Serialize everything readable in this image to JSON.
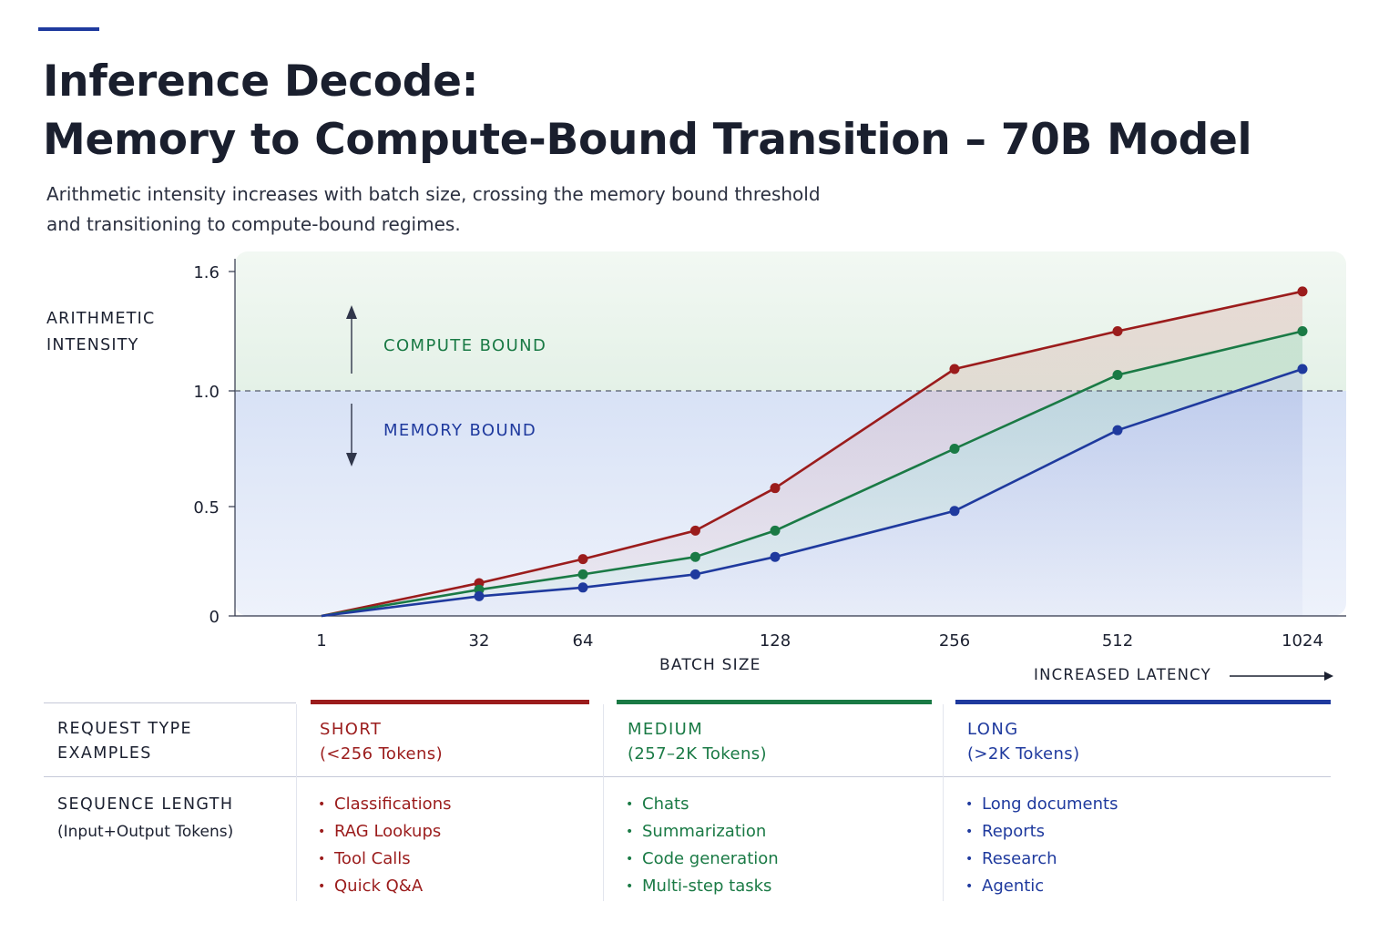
{
  "header": {
    "title_line1": "Inference Decode:",
    "title_line2": "Memory to Compute-Bound Transition – 70B Model",
    "subtitle_line1": "Arithmetic intensity increases with batch size, crossing the memory bound threshold",
    "subtitle_line2": "and transitioning to compute-bound regimes."
  },
  "chart_data": {
    "type": "line",
    "ylabel_line1": "ARITHMETIC",
    "ylabel_line2": "INTENSITY",
    "xlabel": "BATCH SIZE",
    "ylim": [
      0,
      1.6
    ],
    "y_ticks": [
      "0",
      "0.5",
      "1.0",
      "1.6"
    ],
    "x_ticks": [
      "1",
      "32",
      "64",
      "128",
      "256",
      "512",
      "1024"
    ],
    "threshold": 1.0,
    "grid": false,
    "legend": "none",
    "region_labels": {
      "upper": "COMPUTE BOUND",
      "lower": "MEMORY BOUND"
    },
    "series": [
      {
        "color": "#9b1c1c",
        "x": [
          1,
          32,
          64,
          96,
          128,
          256,
          512,
          1024
        ],
        "y": [
          0,
          0.15,
          0.26,
          0.39,
          0.58,
          1.11,
          1.3,
          1.5
        ]
      },
      {
        "color": "#1a7a45",
        "x": [
          1,
          32,
          64,
          96,
          128,
          256,
          512,
          1024
        ],
        "y": [
          0,
          0.12,
          0.19,
          0.27,
          0.39,
          0.75,
          1.08,
          1.3
        ]
      },
      {
        "color": "#1f3a9e",
        "x": [
          1,
          32,
          64,
          96,
          128,
          256,
          512,
          1024
        ],
        "y": [
          0,
          0.09,
          0.13,
          0.19,
          0.27,
          0.48,
          0.83,
          1.11
        ]
      }
    ]
  },
  "latency_label": "INCREASED LATENCY",
  "table": {
    "row1_label_line1": "REQUEST TYPE",
    "row1_label_line2": "EXAMPLES",
    "row2_label_line1": "SEQUENCE LENGTH",
    "row2_label_line2": "(Input+Output Tokens)",
    "columns": [
      {
        "name": "SHORT",
        "range": "(<256 Tokens)",
        "color": "#9b1c1c",
        "examples": [
          "Classifications",
          "RAG Lookups",
          "Tool Calls",
          "Quick Q&A"
        ]
      },
      {
        "name": "MEDIUM",
        "range": "(257–2K Tokens)",
        "color": "#1a7a45",
        "examples": [
          "Chats",
          "Summarization",
          "Code generation",
          "Multi-step tasks"
        ]
      },
      {
        "name": "LONG",
        "range": "(>2K Tokens)",
        "color": "#1f3a9e",
        "examples": [
          "Long documents",
          "Reports",
          "Research",
          "Agentic"
        ]
      }
    ]
  }
}
